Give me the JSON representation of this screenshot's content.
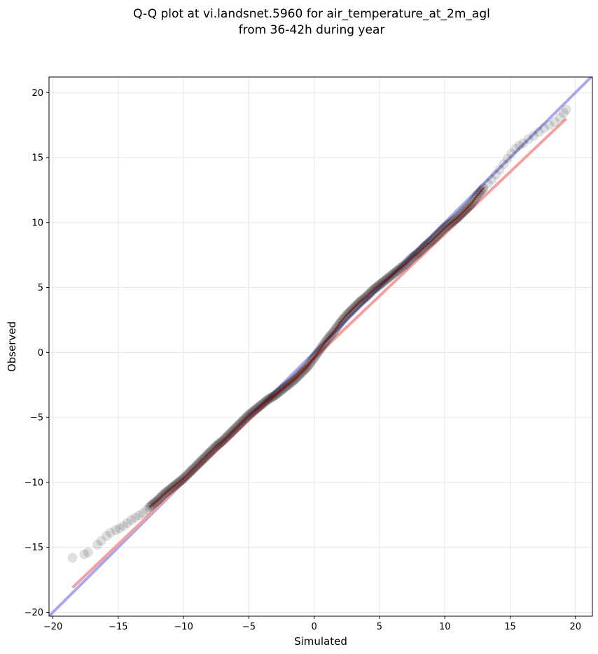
{
  "chart_data": {
    "type": "scatter",
    "title_lines": [
      "Q-Q plot at vi.landsnet.5960 for air_temperature_at_2m_agl",
      "from 36-42h during year"
    ],
    "xlabel": "Simulated",
    "ylabel": "Observed",
    "xlim": [
      -20.3,
      21.3
    ],
    "ylim": [
      -20.3,
      21.2
    ],
    "x_ticks": [
      -20,
      -15,
      -10,
      -5,
      0,
      5,
      10,
      15,
      20
    ],
    "y_ticks": [
      -20,
      -15,
      -10,
      -5,
      0,
      5,
      10,
      15,
      20
    ],
    "x_tick_labels": [
      "−20",
      "−15",
      "−10",
      "−5",
      "0",
      "5",
      "10",
      "15",
      "20"
    ],
    "y_tick_labels": [
      "−20",
      "−15",
      "−10",
      "−5",
      "0",
      "5",
      "10",
      "15",
      "20"
    ],
    "grid": true,
    "quantile_points": {
      "x": [
        -18.5,
        -17.5,
        -17.0,
        -16.5,
        -16.0,
        -15.5,
        -15.0,
        -14.5,
        -14.0,
        -13.5,
        -13.0,
        -12.5,
        -12.0,
        -11.5,
        -11.0,
        -10.5,
        -10.0,
        -9.5,
        -9.0,
        -8.5,
        -8.0,
        -7.5,
        -7.0,
        -6.5,
        -6.0,
        -5.5,
        -5.0,
        -4.5,
        -4.0,
        -3.5,
        -3.0,
        -2.5,
        -2.0,
        -1.5,
        -1.0,
        -0.5,
        0.0,
        0.5,
        1.0,
        1.5,
        2.0,
        2.5,
        3.0,
        3.5,
        4.0,
        4.5,
        5.0,
        5.5,
        6.0,
        6.5,
        7.0,
        7.5,
        8.0,
        8.5,
        9.0,
        9.5,
        10.0,
        10.5,
        11.0,
        11.5,
        12.0,
        12.5,
        13.0,
        13.5,
        14.0,
        14.5,
        15.0,
        15.5,
        16.0,
        16.5,
        17.0,
        17.5,
        18.0,
        18.5,
        19.0,
        19.3
      ],
      "y": [
        -15.8,
        -15.5,
        -15.2,
        -14.7,
        -14.2,
        -13.8,
        -13.6,
        -13.3,
        -12.9,
        -12.6,
        -12.3,
        -11.8,
        -11.4,
        -10.9,
        -10.5,
        -10.1,
        -9.7,
        -9.2,
        -8.7,
        -8.2,
        -7.7,
        -7.2,
        -6.8,
        -6.3,
        -5.8,
        -5.3,
        -4.8,
        -4.4,
        -4.0,
        -3.6,
        -3.3,
        -2.9,
        -2.5,
        -2.1,
        -1.6,
        -1.1,
        -0.4,
        0.3,
        1.0,
        1.6,
        2.3,
        2.9,
        3.4,
        3.9,
        4.3,
        4.8,
        5.2,
        5.6,
        6.0,
        6.4,
        6.8,
        7.3,
        7.7,
        8.2,
        8.6,
        9.1,
        9.6,
        10.0,
        10.4,
        10.9,
        11.4,
        12.1,
        12.7,
        13.2,
        13.8,
        14.5,
        15.2,
        15.8,
        16.1,
        16.5,
        16.8,
        17.2,
        17.5,
        17.8,
        18.3,
        18.7
      ]
    },
    "fit_line": {
      "x": [
        -18.5,
        19.3
      ],
      "y": [
        -18.1,
        18.0
      ],
      "color": "#f5a0a0"
    },
    "identity_line": {
      "x": [
        -20.3,
        21.3
      ],
      "y": [
        -20.3,
        21.3
      ],
      "color": "#a8a8f0"
    },
    "colors": {
      "point": "#000000",
      "point_line": "#8b0000",
      "point_line_inner": "#00008b",
      "grid": "#e6e6e6"
    }
  }
}
